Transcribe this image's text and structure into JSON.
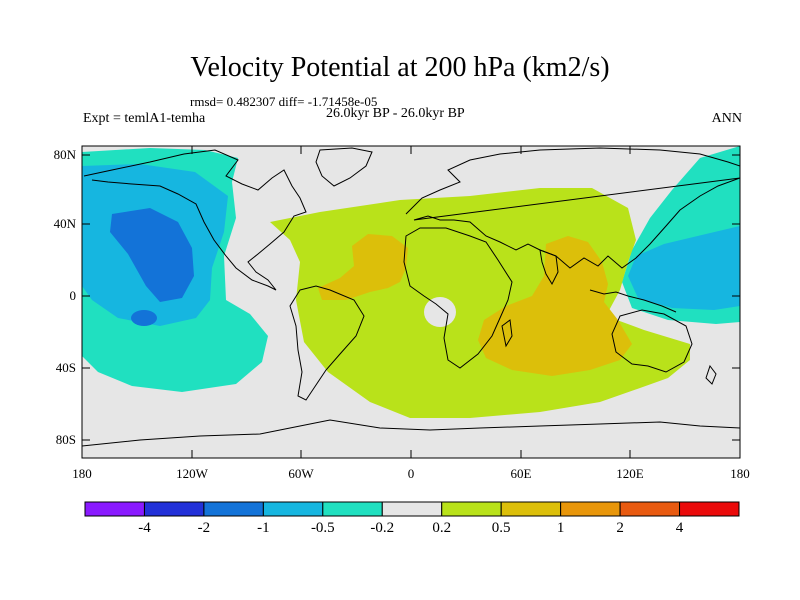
{
  "title": "Velocity Potential at 200 hPa (km2/s)",
  "stats": "rmsd= 0.482307 diff= -1.71458e-05",
  "experiment": "Expt = temlA1-temha",
  "period": "26.0kyr BP - 26.0kyr BP",
  "season": "ANN",
  "axes": {
    "lat_labels": [
      "80N",
      "40N",
      "0",
      "40S",
      "80S"
    ],
    "lon_labels": [
      "180",
      "120W",
      "60W",
      "0",
      "60E",
      "120E",
      "180"
    ]
  },
  "colorbar": {
    "colors": [
      "#8a1aff",
      "#2231d8",
      "#1373d8",
      "#16b6e0",
      "#20e0c0",
      "#e6e6e6",
      "#b9e21a",
      "#dcbf0a",
      "#e8960a",
      "#e85a10",
      "#ea0a0a"
    ],
    "labels": [
      "-4",
      "-2",
      "-1",
      "-0.5",
      "-0.2",
      "0.2",
      "0.5",
      "1",
      "2",
      "4"
    ]
  },
  "colors": {
    "land_ocean_background": "#e6e6e6",
    "coastline": "#000000"
  }
}
